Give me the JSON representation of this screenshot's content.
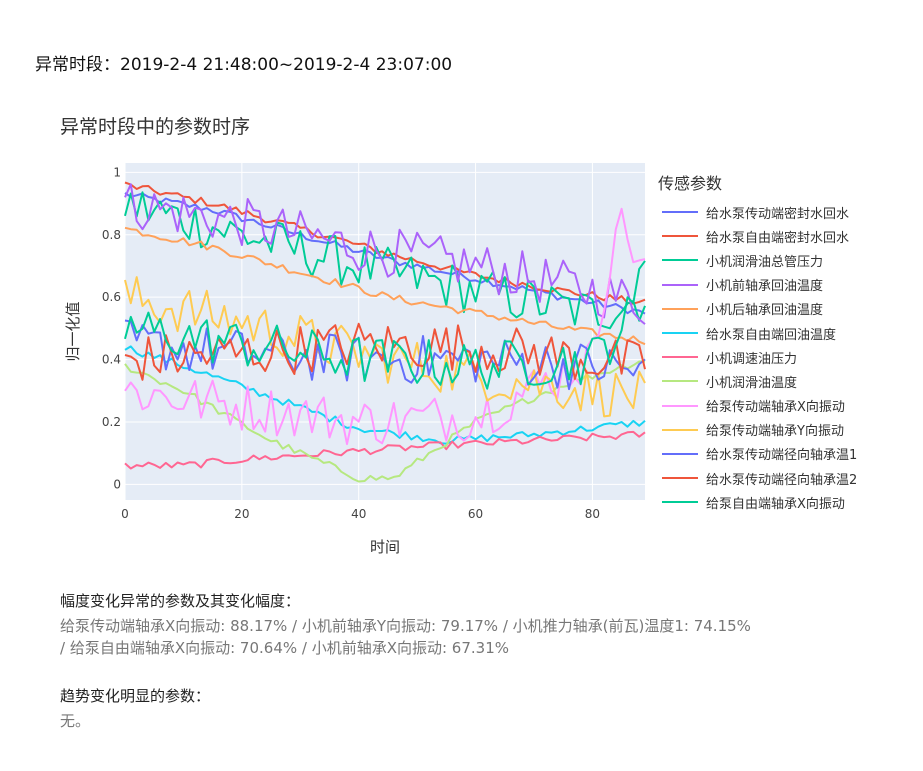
{
  "period": {
    "label": "异常时段：",
    "value": "2019-2-4 21:48:00~2019-2-4 23:07:00"
  },
  "amplitude_section": {
    "heading": "幅度变化异常的参数及其变化幅度：",
    "line1": "给泵传动端轴承X向振动: 88.17% / 小机前轴承Y向振动: 79.17% / 小机推力轴承(前瓦)温度1: 74.15%",
    "line2": "/ 给泵自由端轴承X向振动: 70.64% / 小机前轴承X向振动: 67.31%"
  },
  "trend_section": {
    "heading": "趋势变化明显的参数：",
    "body": "无。"
  },
  "chart_data": {
    "type": "line",
    "title": "异常时段中的参数时序",
    "xlabel": "时间",
    "ylabel": "归一化值",
    "xlim": [
      0,
      89
    ],
    "ylim": [
      -0.05,
      1.03
    ],
    "x_ticks": [
      0,
      20,
      40,
      60,
      80
    ],
    "y_ticks": [
      0,
      0.2,
      0.4,
      0.6,
      0.8,
      1
    ],
    "grid": true,
    "legend_title": "传感参数",
    "legend_position": "right",
    "series": [
      {
        "name": "给水泵传动端密封水回水",
        "color": "#636efa",
        "style": "smooth",
        "kx": [
          0,
          15,
          30,
          45,
          60,
          75,
          89
        ],
        "ky": [
          0.93,
          0.88,
          0.8,
          0.72,
          0.66,
          0.6,
          0.55
        ]
      },
      {
        "name": "给水泵自由端密封水回水",
        "color": "#ef553b",
        "style": "smooth",
        "kx": [
          0,
          15,
          30,
          45,
          60,
          75,
          89
        ],
        "ky": [
          0.96,
          0.9,
          0.82,
          0.74,
          0.67,
          0.62,
          0.58
        ]
      },
      {
        "name": "小机润滑油总管压力",
        "color": "#00cc96",
        "style": "noisy",
        "kx": [
          0,
          20,
          40,
          60,
          80,
          89
        ],
        "ky": [
          0.9,
          0.8,
          0.7,
          0.62,
          0.55,
          0.6
        ]
      },
      {
        "name": "小机前轴承回油温度",
        "color": "#ab63fa",
        "style": "noisy",
        "kx": [
          0,
          20,
          40,
          60,
          80,
          89
        ],
        "ky": [
          0.9,
          0.84,
          0.76,
          0.7,
          0.62,
          0.58
        ]
      },
      {
        "name": "小机后轴承回油温度",
        "color": "#ffa15a",
        "style": "smooth",
        "kx": [
          0,
          15,
          30,
          45,
          60,
          75,
          89
        ],
        "ky": [
          0.82,
          0.76,
          0.68,
          0.6,
          0.55,
          0.5,
          0.46
        ]
      },
      {
        "name": "给水泵自由端回油温度",
        "color": "#19d3f3",
        "style": "smooth",
        "kx": [
          0,
          10,
          25,
          40,
          55,
          70,
          89
        ],
        "ky": [
          0.44,
          0.38,
          0.28,
          0.18,
          0.14,
          0.16,
          0.2
        ]
      },
      {
        "name": "小机调速油压力",
        "color": "#ff6692",
        "style": "smooth",
        "kx": [
          0,
          10,
          20,
          35,
          50,
          70,
          89
        ],
        "ky": [
          0.06,
          0.06,
          0.08,
          0.1,
          0.12,
          0.14,
          0.16
        ]
      },
      {
        "name": "小机润滑油温度",
        "color": "#b6e880",
        "style": "smooth",
        "kx": [
          0,
          10,
          25,
          40,
          46,
          60,
          75,
          89
        ],
        "ky": [
          0.38,
          0.3,
          0.14,
          0.02,
          0.02,
          0.2,
          0.32,
          0.4
        ]
      },
      {
        "name": "给泵传动端轴承X向振动",
        "color": "#ff97ff",
        "style": "noisy",
        "kx": [
          0,
          20,
          40,
          60,
          80,
          84,
          89
        ],
        "ky": [
          0.3,
          0.25,
          0.2,
          0.22,
          0.4,
          0.85,
          0.7
        ]
      },
      {
        "name": "给泵传动端轴承Y向振动",
        "color": "#fecb52",
        "style": "noisy",
        "kx": [
          0,
          20,
          40,
          60,
          80,
          89
        ],
        "ky": [
          0.6,
          0.52,
          0.42,
          0.35,
          0.3,
          0.28
        ]
      },
      {
        "name": "给水泵传动端径向轴承温1",
        "color": "#636efa",
        "style": "noisy",
        "kx": [
          0,
          20,
          40,
          60,
          80,
          89
        ],
        "ky": [
          0.45,
          0.42,
          0.4,
          0.4,
          0.38,
          0.36
        ]
      },
      {
        "name": "给水泵传动端径向轴承温2",
        "color": "#ef553b",
        "style": "noisy",
        "kx": [
          0,
          20,
          40,
          60,
          80,
          89
        ],
        "ky": [
          0.4,
          0.42,
          0.45,
          0.44,
          0.4,
          0.38
        ]
      },
      {
        "name": "给泵自由端轴承X向振动",
        "color": "#00cc96",
        "style": "noisy",
        "kx": [
          0,
          20,
          40,
          60,
          80,
          87,
          89
        ],
        "ky": [
          0.5,
          0.45,
          0.4,
          0.38,
          0.4,
          0.55,
          0.75
        ]
      }
    ]
  }
}
